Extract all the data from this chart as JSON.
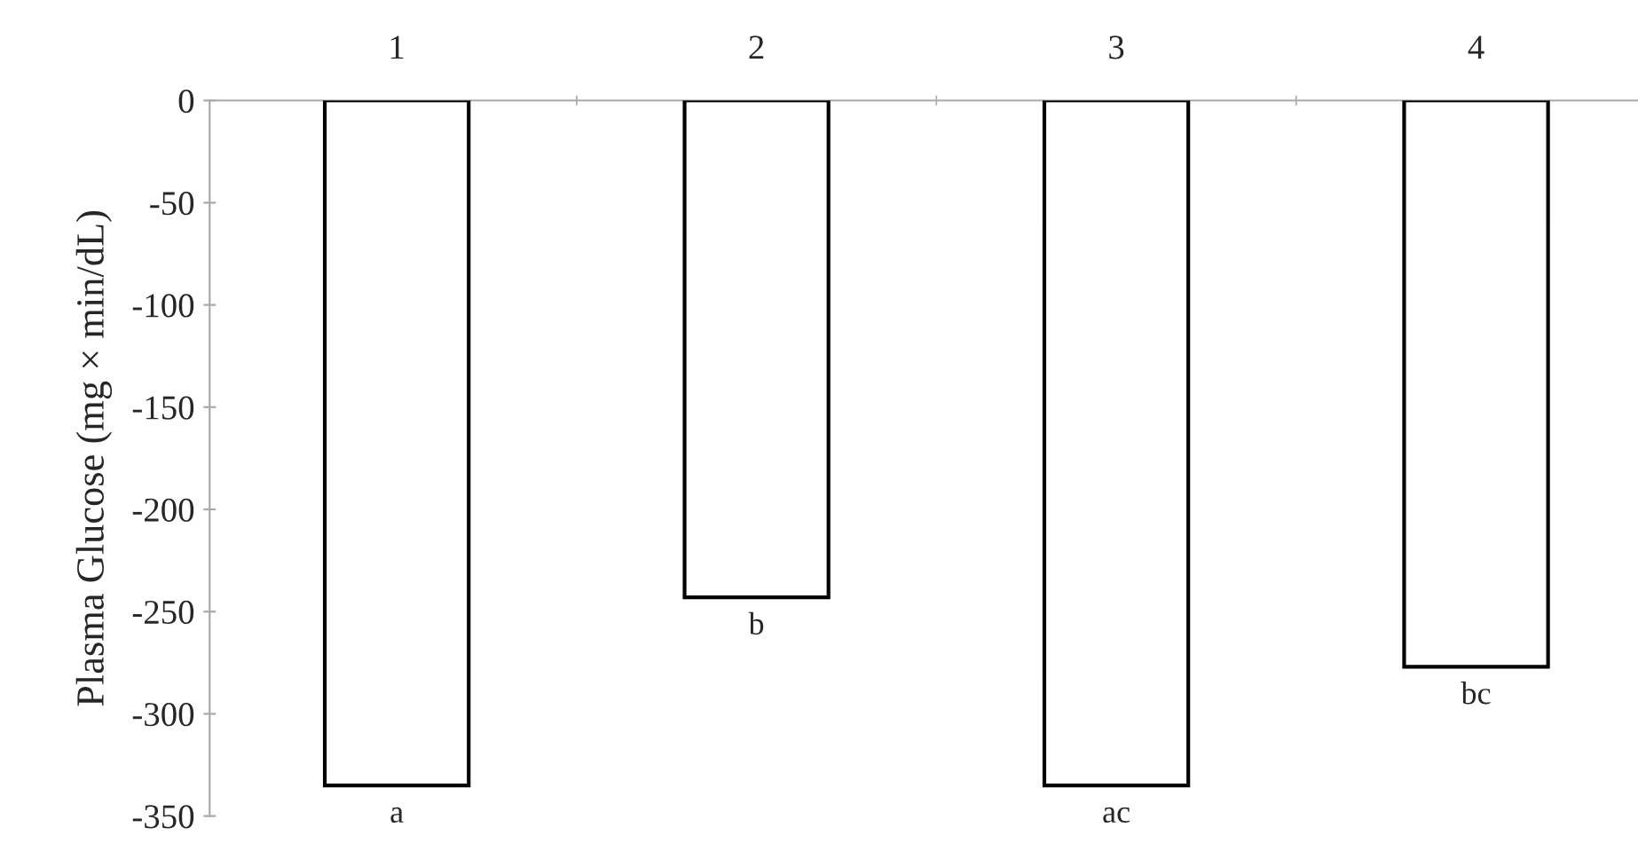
{
  "chart_data": {
    "type": "bar",
    "ylabel": "Plasma Glucose (mg × min/dL)",
    "categories": [
      "1",
      "2",
      "3",
      "4"
    ],
    "values": [
      -335,
      -243,
      -335,
      -277
    ],
    "color": "#ffffff",
    "ylim": [
      -350,
      0
    ],
    "yticks": [
      0,
      -50,
      -100,
      -150,
      -200,
      -250,
      -300,
      -350
    ],
    "grid": false,
    "legend": false,
    "annotations": [
      {
        "text": "a",
        "x": "1",
        "y": -335
      },
      {
        "text": "b",
        "x": "2",
        "y": -243
      },
      {
        "text": "ac",
        "x": "3",
        "y": -335
      },
      {
        "text": "bc",
        "x": "4",
        "y": -277
      }
    ]
  }
}
